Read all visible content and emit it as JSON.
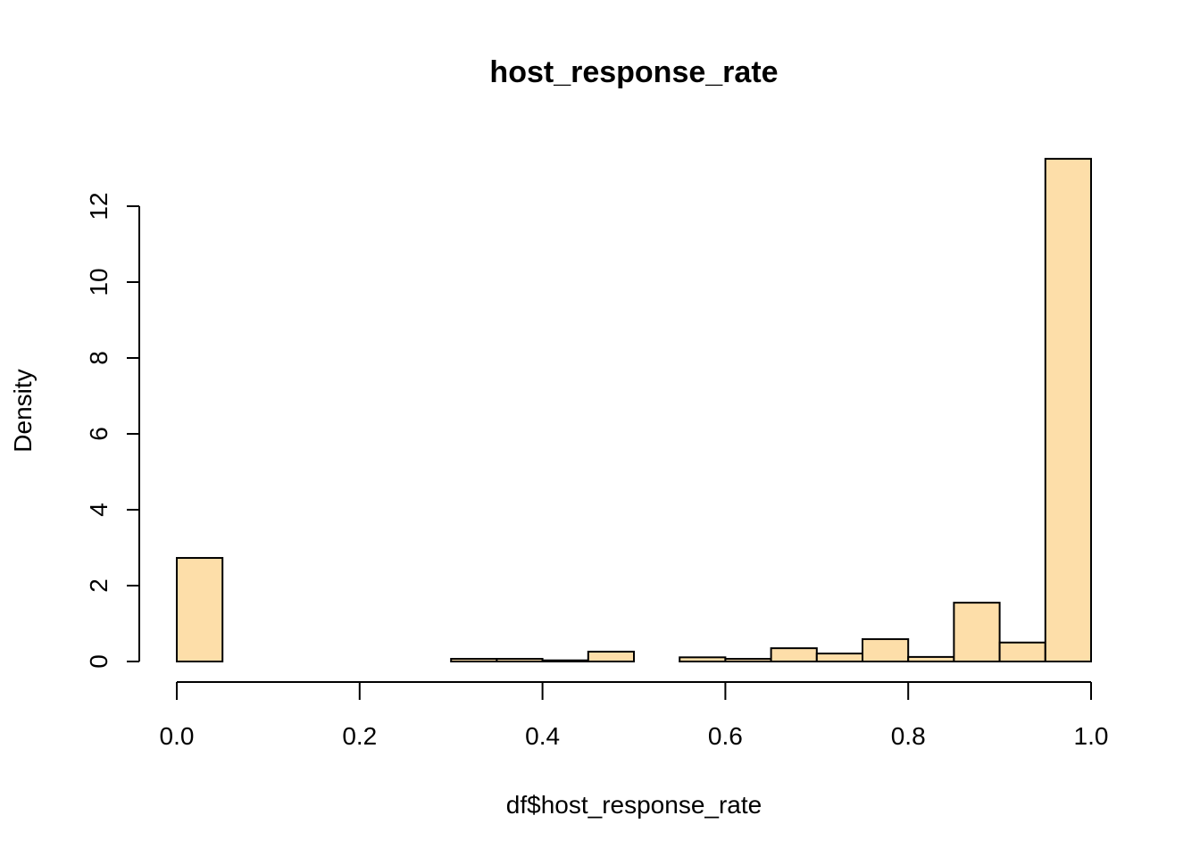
{
  "chart_data": {
    "type": "bar",
    "subtype": "histogram",
    "title": "host_response_rate",
    "xlabel": "df$host_response_rate",
    "ylabel": "Density",
    "xlim": [
      0,
      1
    ],
    "ylim": [
      0,
      12
    ],
    "grid": false,
    "bar_fill": "#FDDEA9",
    "bar_stroke": "#000000",
    "x_ticks": [
      "0.0",
      "0.2",
      "0.4",
      "0.6",
      "0.8",
      "1.0"
    ],
    "x_tick_values": [
      0,
      0.2,
      0.4,
      0.6,
      0.8,
      1.0
    ],
    "y_ticks": [
      "0",
      "2",
      "4",
      "6",
      "8",
      "10",
      "12"
    ],
    "y_tick_values": [
      0,
      2,
      4,
      6,
      8,
      10,
      12
    ],
    "bins": [
      {
        "x0": 0.0,
        "x1": 0.05,
        "density": 2.73
      },
      {
        "x0": 0.05,
        "x1": 0.1,
        "density": 0
      },
      {
        "x0": 0.1,
        "x1": 0.15,
        "density": 0
      },
      {
        "x0": 0.15,
        "x1": 0.2,
        "density": 0
      },
      {
        "x0": 0.2,
        "x1": 0.25,
        "density": 0
      },
      {
        "x0": 0.25,
        "x1": 0.3,
        "density": 0
      },
      {
        "x0": 0.3,
        "x1": 0.35,
        "density": 0.07
      },
      {
        "x0": 0.35,
        "x1": 0.4,
        "density": 0.07
      },
      {
        "x0": 0.4,
        "x1": 0.45,
        "density": 0.03
      },
      {
        "x0": 0.45,
        "x1": 0.5,
        "density": 0.26
      },
      {
        "x0": 0.5,
        "x1": 0.55,
        "density": 0
      },
      {
        "x0": 0.55,
        "x1": 0.6,
        "density": 0.11
      },
      {
        "x0": 0.6,
        "x1": 0.65,
        "density": 0.07
      },
      {
        "x0": 0.65,
        "x1": 0.7,
        "density": 0.35
      },
      {
        "x0": 0.7,
        "x1": 0.75,
        "density": 0.21
      },
      {
        "x0": 0.75,
        "x1": 0.8,
        "density": 0.59
      },
      {
        "x0": 0.8,
        "x1": 0.85,
        "density": 0.12
      },
      {
        "x0": 0.85,
        "x1": 0.9,
        "density": 1.55
      },
      {
        "x0": 0.9,
        "x1": 0.95,
        "density": 0.5
      },
      {
        "x0": 0.95,
        "x1": 1.0,
        "density": 13.25
      }
    ]
  }
}
